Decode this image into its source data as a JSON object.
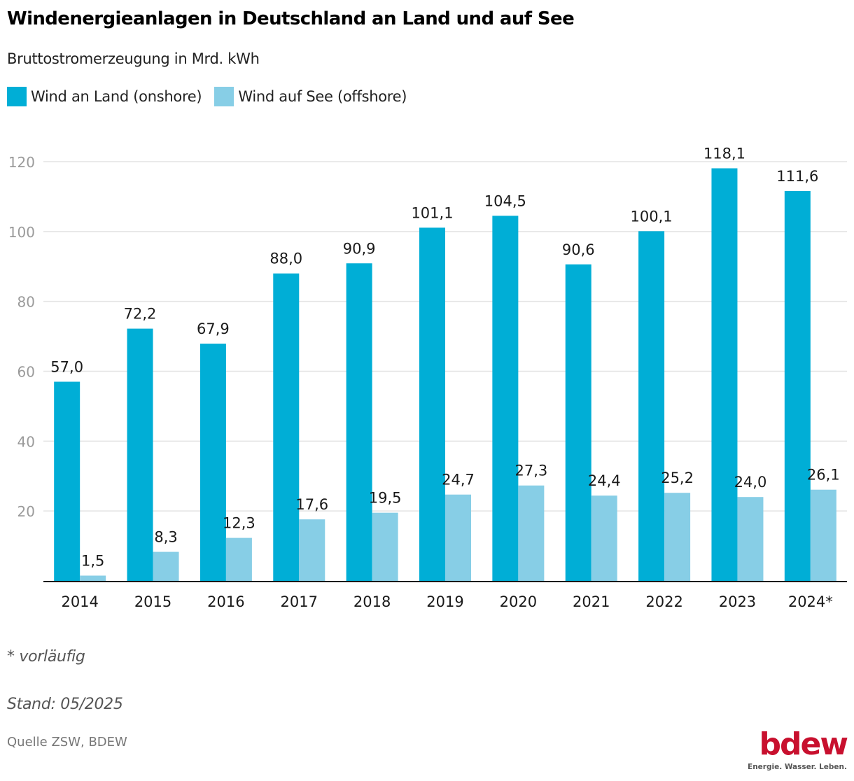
{
  "title": "Windenergieanlagen in Deutschland an Land und auf See",
  "subtitle": "Bruttostromerzeugung in Mrd. kWh",
  "footnote": "* vorläufig",
  "stand": "Stand: 05/2025",
  "source": "Quelle ZSW, BDEW",
  "logo": {
    "word": "bdew",
    "tagline": "Energie. Wasser. Leben."
  },
  "colors": {
    "onshore": "#00aed6",
    "offshore": "#87cee6",
    "grid": "#e3e3e3",
    "axis": "#1a1a1a",
    "tick": "#9a9a9a"
  },
  "chart_data": {
    "type": "bar",
    "title": "Windenergieanlagen in Deutschland an Land und auf See",
    "subtitle": "Bruttostromerzeugung in Mrd. kWh",
    "xlabel": "",
    "ylabel": "",
    "ylim": [
      0,
      120
    ],
    "yticks": [
      20,
      40,
      60,
      80,
      100,
      120
    ],
    "grid": true,
    "legend_position": "top-left",
    "categories": [
      "2014",
      "2015",
      "2016",
      "2017",
      "2018",
      "2019",
      "2020",
      "2021",
      "2022",
      "2023",
      "2024*"
    ],
    "series": [
      {
        "name": "Wind an Land (onshore)",
        "values": [
          57.0,
          72.2,
          67.9,
          88.0,
          90.9,
          101.1,
          104.5,
          90.6,
          100.1,
          118.1,
          111.6
        ],
        "labels": [
          "57,0",
          "72,2",
          "67,9",
          "88,0",
          "90,9",
          "101,1",
          "104,5",
          "90,6",
          "100,1",
          "118,1",
          "111,6"
        ]
      },
      {
        "name": "Wind auf See (offshore)",
        "values": [
          1.5,
          8.3,
          12.3,
          17.6,
          19.5,
          24.7,
          27.3,
          24.4,
          25.2,
          24.0,
          26.1
        ],
        "labels": [
          "1,5",
          "8,3",
          "12,3",
          "17,6",
          "19,5",
          "24,7",
          "27,3",
          "24,4",
          "25,2",
          "24,0",
          "26,1"
        ]
      }
    ]
  }
}
